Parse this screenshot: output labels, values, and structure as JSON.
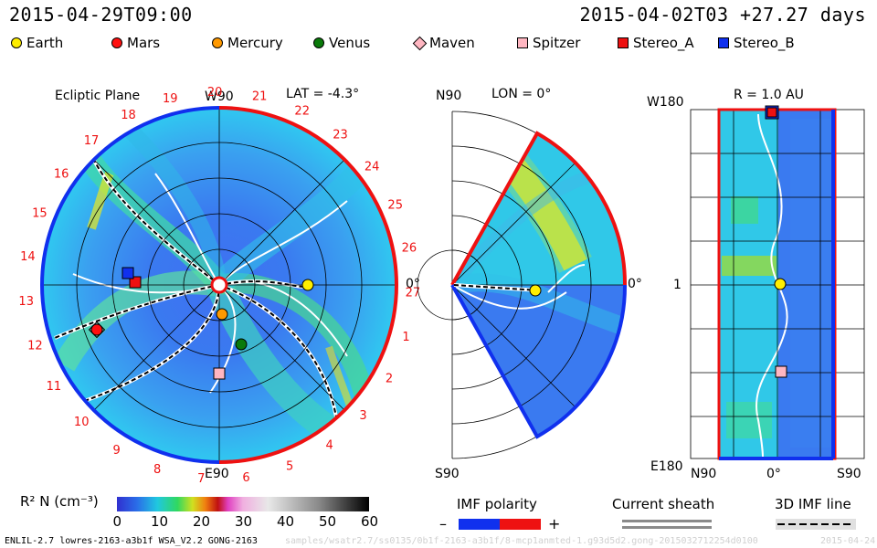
{
  "header": {
    "model_time": "2015-04-29T09:00",
    "run_info": "2015-04-02T03 +27.27 days"
  },
  "legend": [
    {
      "name": "Earth",
      "shape": "circle",
      "color": "#ffee00"
    },
    {
      "name": "Mars",
      "shape": "circle",
      "color": "#ff1010"
    },
    {
      "name": "Mercury",
      "shape": "circle",
      "color": "#ff9900"
    },
    {
      "name": "Venus",
      "shape": "circle",
      "color": "#0a7a0a"
    },
    {
      "name": "Maven",
      "shape": "diamond",
      "color": "#ffb6c1"
    },
    {
      "name": "Spitzer",
      "shape": "square",
      "color": "#ffb6c1"
    },
    {
      "name": "Stereo_A",
      "shape": "square",
      "color": "#ee1111"
    },
    {
      "name": "Stereo_B",
      "shape": "square",
      "color": "#1030ee"
    }
  ],
  "panels": {
    "ecliptic": {
      "title": "Ecliptic Plane",
      "lat_label": "LAT = -4.3°",
      "top_label": "W90",
      "bottom_label": "E90",
      "right_label": "0°",
      "sector_numbers": [
        "1",
        "2",
        "3",
        "4",
        "5",
        "6",
        "7",
        "8",
        "9",
        "10",
        "11",
        "12",
        "13",
        "14",
        "15",
        "16",
        "17",
        "18",
        "19",
        "20",
        "21",
        "22",
        "23",
        "24",
        "25",
        "26",
        "27"
      ]
    },
    "meridional": {
      "top_label": "N90",
      "bottom_label": "S90",
      "lon_label": "LON = 0°",
      "right_label": "0°"
    },
    "radial": {
      "r_label": "R = 1.0 AU",
      "top_left": "W180",
      "bottom_left": "E180",
      "mid_left": "1",
      "bottom_center": "0°",
      "bottom_n": "N90",
      "bottom_s": "S90"
    }
  },
  "colorbar": {
    "label": "R² N (cm⁻³)",
    "ticks": [
      "0",
      "10",
      "20",
      "30",
      "40",
      "50",
      "60"
    ],
    "range": [
      0,
      60
    ]
  },
  "imf": {
    "label": "IMF polarity",
    "minus": "–",
    "plus": "+",
    "colors": [
      "#1030ee",
      "#ee1111"
    ]
  },
  "current_sheath": {
    "label": "Current sheath"
  },
  "imf_line": {
    "label": "3D IMF line"
  },
  "footer": {
    "version": "ENLIL-2.7 lowres-2163-a3b1f WSA_V2.2 GONG-2163",
    "path": "samples/wsatr2.7/ss0135/0b1f-2163-a3b1f/8-mcp1anmted-1.g93d5d2.gong-2015032712254d0100",
    "date": "2015-04-24"
  }
}
